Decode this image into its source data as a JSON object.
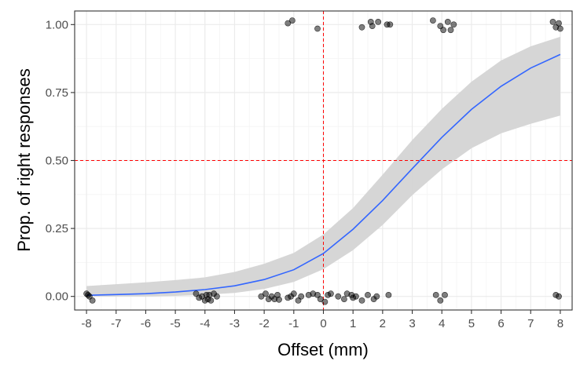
{
  "chart_data": {
    "type": "scatter",
    "xlabel": "Offset (mm)",
    "ylabel": "Prop. of right responses",
    "xlim": [
      -8.4,
      8.4
    ],
    "ylim": [
      -0.05,
      1.05
    ],
    "x_ticks": [
      -8,
      -7,
      -6,
      -5,
      -4,
      -3,
      -2,
      -1,
      0,
      1,
      2,
      3,
      4,
      5,
      6,
      7,
      8
    ],
    "x_tick_labels": [
      "-8",
      "-7",
      "-6",
      "-5",
      "-4",
      "-3",
      "-2",
      "-1",
      "0",
      "1",
      "2",
      "3",
      "4",
      "5",
      "6",
      "7",
      "8"
    ],
    "y_ticks": [
      0,
      0.25,
      0.5,
      0.75,
      1
    ],
    "y_tick_labels": [
      "0.00",
      "0.25",
      "0.50",
      "0.75",
      "1.00"
    ],
    "grid": true,
    "reference_lines": {
      "vertical_x": 0,
      "horizontal_y": 0.5,
      "color": "#ff0000"
    },
    "points": [
      {
        "x": -8.0,
        "y": 0.01
      },
      {
        "x": -7.9,
        "y": 0.0
      },
      {
        "x": -7.8,
        "y": -0.015
      },
      {
        "x": -7.95,
        "y": 0.005
      },
      {
        "x": -4.3,
        "y": 0.01
      },
      {
        "x": -4.2,
        "y": -0.005
      },
      {
        "x": -4.1,
        "y": 0.0
      },
      {
        "x": -4.0,
        "y": -0.015
      },
      {
        "x": -3.95,
        "y": 0.005
      },
      {
        "x": -3.9,
        "y": -0.01
      },
      {
        "x": -3.85,
        "y": 0.005
      },
      {
        "x": -3.8,
        "y": -0.015
      },
      {
        "x": -3.7,
        "y": 0.01
      },
      {
        "x": -3.6,
        "y": 0.0
      },
      {
        "x": -2.1,
        "y": 0.0
      },
      {
        "x": -1.95,
        "y": 0.01
      },
      {
        "x": -1.85,
        "y": -0.01
      },
      {
        "x": -1.75,
        "y": 0.0
      },
      {
        "x": -1.65,
        "y": -0.01
      },
      {
        "x": -1.55,
        "y": 0.005
      },
      {
        "x": -1.5,
        "y": -0.012
      },
      {
        "x": -1.2,
        "y": -0.005
      },
      {
        "x": -1.1,
        "y": 0.0
      },
      {
        "x": -1.0,
        "y": 0.01
      },
      {
        "x": -0.85,
        "y": -0.015
      },
      {
        "x": -0.75,
        "y": 0.0
      },
      {
        "x": -0.5,
        "y": 0.005
      },
      {
        "x": -0.35,
        "y": 0.01
      },
      {
        "x": -0.2,
        "y": 0.005
      },
      {
        "x": -0.1,
        "y": -0.01
      },
      {
        "x": 0.05,
        "y": -0.02
      },
      {
        "x": 0.15,
        "y": 0.005
      },
      {
        "x": 0.25,
        "y": 0.01
      },
      {
        "x": 0.5,
        "y": 0.0
      },
      {
        "x": 0.7,
        "y": -0.01
      },
      {
        "x": 0.8,
        "y": 0.01
      },
      {
        "x": 0.95,
        "y": 0.005
      },
      {
        "x": 1.0,
        "y": -0.005
      },
      {
        "x": 1.1,
        "y": 0.0
      },
      {
        "x": 1.3,
        "y": -0.015
      },
      {
        "x": 1.5,
        "y": 0.005
      },
      {
        "x": 1.7,
        "y": -0.01
      },
      {
        "x": 1.8,
        "y": 0.0
      },
      {
        "x": 2.2,
        "y": 0.005
      },
      {
        "x": 3.8,
        "y": 0.005
      },
      {
        "x": 3.95,
        "y": -0.015
      },
      {
        "x": 4.1,
        "y": 0.005
      },
      {
        "x": 7.85,
        "y": 0.005
      },
      {
        "x": 7.95,
        "y": 0.0
      },
      {
        "x": -1.2,
        "y": 1.005
      },
      {
        "x": -1.05,
        "y": 1.015
      },
      {
        "x": -0.2,
        "y": 0.985
      },
      {
        "x": 1.3,
        "y": 0.99
      },
      {
        "x": 1.6,
        "y": 1.01
      },
      {
        "x": 1.65,
        "y": 0.995
      },
      {
        "x": 1.85,
        "y": 1.01
      },
      {
        "x": 2.15,
        "y": 1.0
      },
      {
        "x": 2.25,
        "y": 1.0
      },
      {
        "x": 3.7,
        "y": 1.015
      },
      {
        "x": 3.95,
        "y": 0.995
      },
      {
        "x": 4.05,
        "y": 0.98
      },
      {
        "x": 4.2,
        "y": 1.01
      },
      {
        "x": 4.3,
        "y": 0.98
      },
      {
        "x": 4.4,
        "y": 1.0
      },
      {
        "x": 7.75,
        "y": 1.01
      },
      {
        "x": 7.85,
        "y": 0.99
      },
      {
        "x": 7.95,
        "y": 1.005
      },
      {
        "x": 8.0,
        "y": 0.985
      }
    ],
    "fit_line": {
      "x": [
        -8,
        -7,
        -6,
        -5,
        -4,
        -3,
        -2,
        -1,
        0,
        1,
        2,
        3,
        4,
        5,
        6,
        7,
        8
      ],
      "y": [
        0.004,
        0.007,
        0.01,
        0.016,
        0.025,
        0.039,
        0.062,
        0.098,
        0.158,
        0.247,
        0.353,
        0.47,
        0.585,
        0.688,
        0.773,
        0.84,
        0.89
      ],
      "ci_lower": [
        0.0,
        0.0,
        0.0,
        0.002,
        0.006,
        0.013,
        0.027,
        0.053,
        0.1,
        0.17,
        0.263,
        0.372,
        0.467,
        0.545,
        0.6,
        0.635,
        0.665
      ],
      "ci_upper": [
        0.038,
        0.045,
        0.052,
        0.06,
        0.07,
        0.09,
        0.12,
        0.16,
        0.228,
        0.325,
        0.448,
        0.575,
        0.69,
        0.79,
        0.868,
        0.92,
        0.955
      ]
    },
    "colors": {
      "fit_line": "#3366ff",
      "ci_band": "#d4d4d4",
      "points": "#000000",
      "reference": "#ff0000",
      "grid_major": "#ebebeb",
      "grid_minor": "#f4f4f4",
      "panel_border": "#333333"
    }
  }
}
